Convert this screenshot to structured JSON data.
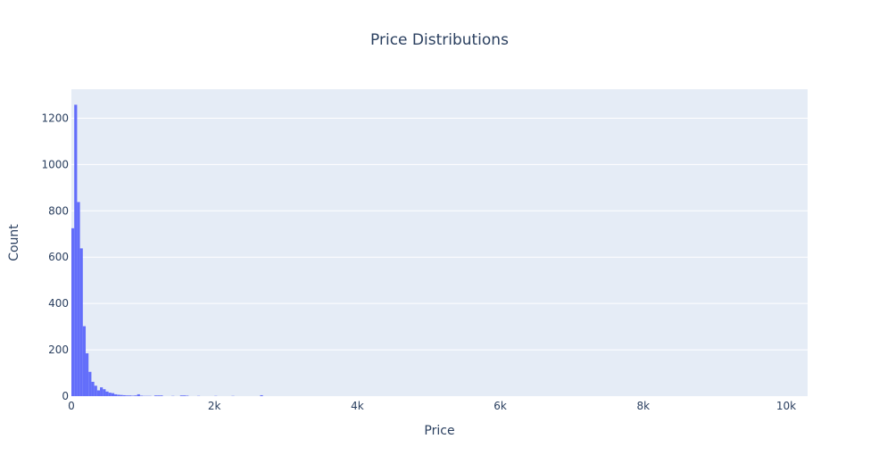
{
  "chart_data": {
    "type": "bar",
    "title": "Price Distributions",
    "xlabel": "Price",
    "ylabel": "Count",
    "xlim": [
      0,
      10300
    ],
    "ylim": [
      0,
      1325
    ],
    "bin_width": 40,
    "x_ticks": [
      0,
      2000,
      4000,
      6000,
      8000,
      10000
    ],
    "x_tick_labels": [
      "0",
      "2k",
      "4k",
      "6k",
      "8k",
      "10k"
    ],
    "y_ticks": [
      0,
      200,
      400,
      600,
      800,
      1000,
      1200
    ],
    "y_tick_labels": [
      "0",
      "200",
      "400",
      "600",
      "800",
      "1000",
      "1200"
    ],
    "grid": true,
    "colors": {
      "bar": "#636efa",
      "plot_bg": "#e5ecf6",
      "grid": "#ffffff",
      "text": "#2a3f5f"
    },
    "bins": [
      {
        "x": 0,
        "count": 725
      },
      {
        "x": 40,
        "count": 1258
      },
      {
        "x": 80,
        "count": 838
      },
      {
        "x": 120,
        "count": 638
      },
      {
        "x": 160,
        "count": 302
      },
      {
        "x": 200,
        "count": 185
      },
      {
        "x": 240,
        "count": 105
      },
      {
        "x": 280,
        "count": 62
      },
      {
        "x": 320,
        "count": 45
      },
      {
        "x": 360,
        "count": 25
      },
      {
        "x": 400,
        "count": 38
      },
      {
        "x": 440,
        "count": 30
      },
      {
        "x": 480,
        "count": 20
      },
      {
        "x": 520,
        "count": 15
      },
      {
        "x": 560,
        "count": 13
      },
      {
        "x": 600,
        "count": 8
      },
      {
        "x": 640,
        "count": 6
      },
      {
        "x": 680,
        "count": 5
      },
      {
        "x": 720,
        "count": 4
      },
      {
        "x": 760,
        "count": 3
      },
      {
        "x": 800,
        "count": 3
      },
      {
        "x": 840,
        "count": 2
      },
      {
        "x": 880,
        "count": 3
      },
      {
        "x": 920,
        "count": 8
      },
      {
        "x": 960,
        "count": 2
      },
      {
        "x": 1000,
        "count": 1
      },
      {
        "x": 1040,
        "count": 1
      },
      {
        "x": 1080,
        "count": 1
      },
      {
        "x": 1160,
        "count": 3
      },
      {
        "x": 1200,
        "count": 3
      },
      {
        "x": 1240,
        "count": 3
      },
      {
        "x": 1400,
        "count": 1
      },
      {
        "x": 1520,
        "count": 3
      },
      {
        "x": 1560,
        "count": 3
      },
      {
        "x": 1600,
        "count": 2
      },
      {
        "x": 1760,
        "count": 1
      },
      {
        "x": 2000,
        "count": 1
      },
      {
        "x": 2240,
        "count": 1
      },
      {
        "x": 2640,
        "count": 4
      }
    ]
  }
}
